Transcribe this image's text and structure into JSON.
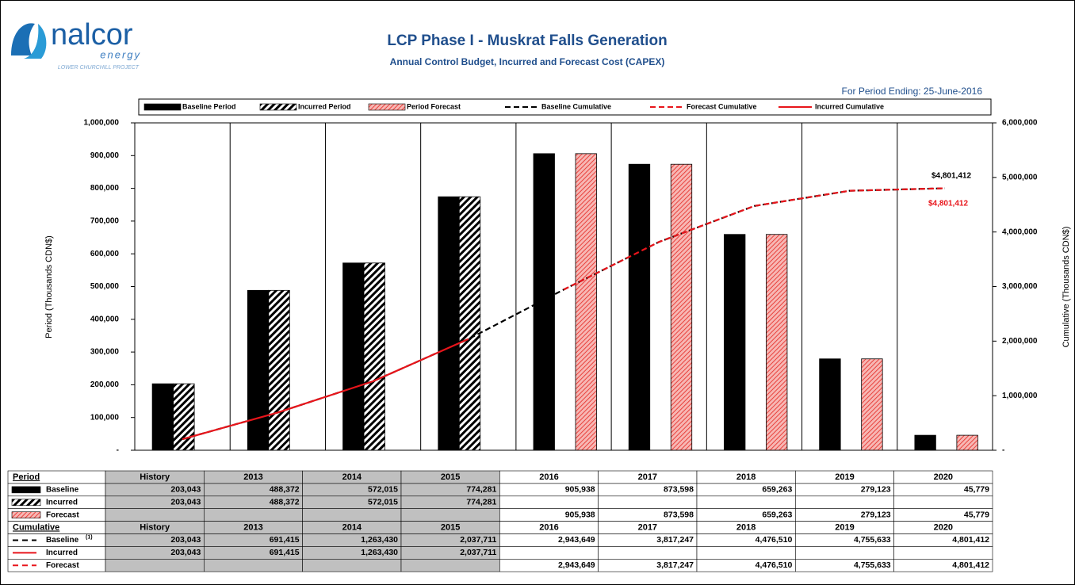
{
  "header": {
    "logo": "nalcor",
    "logo_sub": "energy",
    "logo_tag": "LOWER CHURCHILL PROJECT",
    "period_ending": "For Period Ending: 25-June-2016"
  },
  "chart_data": {
    "type": "bar",
    "title": "LCP Phase I - Muskrat Falls Generation",
    "subtitle": "Annual Control Budget, Incurred and Forecast Cost (CAPEX)",
    "y_label": "Period (Thousands CDN$)",
    "y2_label": "Cumulative (Thousands CDN$)",
    "categories": [
      "History",
      "2013",
      "2014",
      "2015",
      "2016",
      "2017",
      "2018",
      "2019",
      "2020"
    ],
    "ylim": [
      0,
      1000000
    ],
    "yticks": [
      {
        "value": 0,
        "label": "-"
      },
      {
        "value": 100000,
        "label": "100,000"
      },
      {
        "value": 200000,
        "label": "200,000"
      },
      {
        "value": 300000,
        "label": "300,000"
      },
      {
        "value": 400000,
        "label": "400,000"
      },
      {
        "value": 500000,
        "label": "500,000"
      },
      {
        "value": 600000,
        "label": "600,000"
      },
      {
        "value": 700000,
        "label": "700,000"
      },
      {
        "value": 800000,
        "label": "800,000"
      },
      {
        "value": 900000,
        "label": "900,000"
      },
      {
        "value": 1000000,
        "label": "1,000,000"
      }
    ],
    "y2lim": [
      0,
      6000000
    ],
    "y2ticks": [
      {
        "value": 0,
        "label": "-"
      },
      {
        "value": 1000000,
        "label": "1,000,000"
      },
      {
        "value": 2000000,
        "label": "2,000,000"
      },
      {
        "value": 3000000,
        "label": "3,000,000"
      },
      {
        "value": 4000000,
        "label": "4,000,000"
      },
      {
        "value": 5000000,
        "label": "5,000,000"
      },
      {
        "value": 6000000,
        "label": "6,000,000"
      }
    ],
    "series": [
      {
        "name": "Baseline Period",
        "color": "#000000",
        "hatch": false,
        "values": [
          203043,
          488372,
          572015,
          774281,
          905938,
          873598,
          659263,
          279123,
          45779
        ],
        "value_labels": [
          "203,043",
          "488,372",
          "572,015",
          "774,281",
          "905,938",
          "873,598",
          "659,263",
          "279,123",
          "45,779"
        ]
      },
      {
        "name": "Incurred Period",
        "color": "#000000",
        "hatch": true,
        "values": [
          203043,
          488372,
          572015,
          774281,
          null,
          null,
          null,
          null,
          null
        ],
        "value_labels": [
          "203,043",
          "488,372",
          "572,015",
          "774,281",
          null,
          null,
          null,
          null,
          null
        ]
      },
      {
        "name": "Period Forecast",
        "color": "#e8413c",
        "hatch": true,
        "values": [
          null,
          null,
          null,
          null,
          905938,
          873598,
          659263,
          279123,
          45779
        ],
        "value_labels": [
          null,
          null,
          null,
          null,
          "905,938",
          "873,598",
          "659,263",
          "279,123",
          "45,779"
        ]
      },
      {
        "name": "Baseline Cumulative",
        "color": "#000000",
        "axis": "y2",
        "dash": true,
        "values": [
          203043,
          691415,
          1263430,
          2037711,
          2943649,
          3817247,
          4476510,
          4755633,
          4801412
        ],
        "value_labels": [
          "203,043",
          "691,415",
          "1,263,430",
          "2,037,711",
          "2,943,649",
          "3,817,247",
          "4,476,510",
          "4,755,633",
          "4,801,412"
        ]
      },
      {
        "name": "Forecast Cumulative",
        "color": "#e8151b",
        "axis": "y2",
        "dash": true,
        "values": [
          null,
          null,
          null,
          null,
          2943649,
          3817247,
          4476510,
          4755633,
          4801412
        ],
        "value_labels": [
          null,
          null,
          null,
          null,
          "2,943,649",
          "3,817,247",
          "4,476,510",
          "4,755,633",
          "4,801,412"
        ]
      },
      {
        "name": "Incurred Cumulative",
        "color": "#e8151b",
        "axis": "y2",
        "dash": false,
        "values": [
          203043,
          691415,
          1263430,
          2037711,
          null,
          null,
          null,
          null,
          null
        ],
        "value_labels": [
          "203,043",
          "691,415",
          "1,263,430",
          "2,037,711",
          null,
          null,
          null,
          null,
          null
        ]
      }
    ],
    "annotations": [
      {
        "text": "$4,801,412",
        "color": "#000000"
      },
      {
        "text": "$4,801,412",
        "color": "#e8151b"
      }
    ]
  },
  "table": {
    "period_label": "Period",
    "cumulative_label": "Cumulative",
    "rows": [
      "Baseline",
      "Incurred",
      "Forecast",
      "Baseline",
      "Incurred",
      "Forecast"
    ],
    "footnote": "(1)"
  }
}
